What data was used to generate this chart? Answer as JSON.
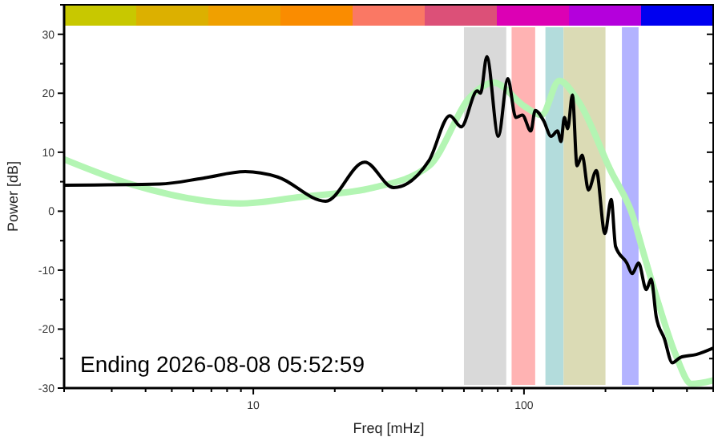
{
  "chart_data": {
    "type": "line",
    "xlabel": "Freq [mHz]",
    "ylabel": "Power [dB]",
    "log": "x",
    "grid": false,
    "line_style": "solid",
    "marker": "none",
    "xlim": [
      2,
      500
    ],
    "ylim": [
      -30,
      35
    ],
    "xticks": [
      {
        "value": 2,
        "label": null
      },
      {
        "value": 3,
        "label": null
      },
      {
        "value": 4,
        "label": null
      },
      {
        "value": 5,
        "label": null
      },
      {
        "value": 6,
        "label": null
      },
      {
        "value": 7,
        "label": null
      },
      {
        "value": 8,
        "label": null
      },
      {
        "value": 9,
        "label": null
      },
      10,
      {
        "value": 20,
        "label": null
      },
      {
        "value": 30,
        "label": null
      },
      {
        "value": 40,
        "label": null
      },
      {
        "value": 50,
        "label": null
      },
      {
        "value": 60,
        "label": null
      },
      {
        "value": 70,
        "label": null
      },
      {
        "value": 80,
        "label": null
      },
      {
        "value": 90,
        "label": null
      },
      100,
      {
        "value": 200,
        "label": null
      },
      {
        "value": 300,
        "label": null
      },
      {
        "value": 400,
        "label": null
      },
      {
        "value": 500,
        "label": null
      }
    ],
    "yticks": [
      -30,
      {
        "value": -25,
        "label": null
      },
      -20,
      {
        "value": -15,
        "label": null
      },
      -10,
      {
        "value": -5,
        "label": null
      },
      0,
      {
        "value": 5,
        "label": null
      },
      10,
      {
        "value": 15,
        "label": null
      },
      20,
      {
        "value": 25,
        "label": null
      },
      30,
      {
        "value": 35,
        "label": null
      }
    ],
    "bands": [
      {
        "axis": "x",
        "from": 60,
        "to": 86,
        "color": "#d9d9d9"
      },
      {
        "axis": "x",
        "from": 90,
        "to": 110,
        "color": "#ffb3b3"
      },
      {
        "axis": "x",
        "from": 120,
        "to": 140,
        "color": "#b3dcdc"
      },
      {
        "axis": "x",
        "from": 140,
        "to": 200,
        "color": "#dbdbb5"
      },
      {
        "axis": "x",
        "from": 230,
        "to": 265,
        "color": "#b3b3ff"
      }
    ],
    "series": [
      {
        "color": "#b3f5b3",
        "x": [
          2,
          3.58,
          8.96,
          14.9,
          27.9,
          44.6,
          63.7,
          77.1,
          101,
          116,
          135,
          159,
          210,
          251,
          276,
          316,
          363,
          416,
          500
        ],
        "values": [
          8.8,
          4.5,
          1.3,
          2.4,
          4,
          7.7,
          19.5,
          21.8,
          17.7,
          16.3,
          22.1,
          18.6,
          6.7,
          -0.5,
          -7,
          -16.1,
          -24.3,
          -29.3,
          -28.7
        ]
      },
      {
        "color": "#000000",
        "x": [
          2,
          4.52,
          6.53,
          9.34,
          12.3,
          18.5,
          25.8,
          33,
          44.6,
          53.2,
          58.6,
          67.2,
          69.1,
          72.9,
          80.4,
          87.1,
          93.3,
          98.6,
          106,
          110,
          118,
          126,
          133,
          137,
          141,
          145,
          151,
          157,
          164,
          173,
          185,
          199,
          210,
          218,
          240,
          251,
          265,
          283,
          295,
          308,
          330,
          353,
          378,
          433,
          500
        ],
        "values": [
          4.4,
          4.6,
          5.6,
          6.7,
          5.8,
          1.7,
          8.3,
          4,
          8.6,
          16.2,
          14.3,
          20.4,
          20,
          26.2,
          12.7,
          22.5,
          15.9,
          16.3,
          13.6,
          17.1,
          15.4,
          12.7,
          13.6,
          11.8,
          15.9,
          14,
          19.7,
          7.7,
          9.5,
          3.6,
          6.9,
          -3.8,
          2,
          -6,
          -8.8,
          -10.6,
          -8.8,
          -13.3,
          -11.5,
          -17.9,
          -21.6,
          -25.7,
          -24.8,
          -24.3,
          -23.2
        ]
      }
    ],
    "annotations": [
      "Ending 2026-08-08 05:52:59"
    ]
  }
}
